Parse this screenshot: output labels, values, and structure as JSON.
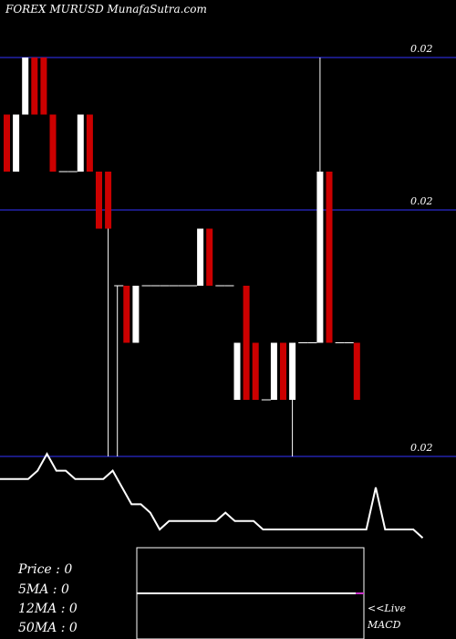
{
  "header": {
    "title": "FOREX  MURUSD MunafaSutra.com"
  },
  "colors": {
    "background": "#000000",
    "gridline": "#1a1a80",
    "down_candle": "#cc0000",
    "up_candle": "#ffffff",
    "text": "#ffffff",
    "macd_line": "#ffffff"
  },
  "chart_data": {
    "type": "candlestick",
    "title": "FOREX  MURUSD MunafaSutra.com",
    "price_axis": {
      "ticks": [
        "0.02",
        "0.02",
        "0.02"
      ]
    },
    "candles": [
      {
        "open": 4,
        "close": 5,
        "dir": "down"
      },
      {
        "open": 4,
        "close": 5,
        "dir": "up"
      },
      {
        "open": 5,
        "close": 6,
        "dir": "up"
      },
      {
        "open": 5,
        "close": 6,
        "dir": "down"
      },
      {
        "open": 5,
        "close": 6,
        "dir": "down"
      },
      {
        "open": 4,
        "close": 5,
        "dir": "down"
      },
      {
        "open": 4,
        "close": 4,
        "dir": "doji"
      },
      {
        "open": 4,
        "close": 4,
        "dir": "doji"
      },
      {
        "open": 4,
        "close": 5,
        "dir": "up"
      },
      {
        "open": 4,
        "close": 5,
        "dir": "down"
      },
      {
        "open": 3,
        "close": 4,
        "dir": "down"
      },
      {
        "open": 3,
        "close": 4,
        "dir": "down",
        "low": 2
      },
      {
        "open": 2,
        "close": 2,
        "dir": "doji"
      },
      {
        "open": 1,
        "close": 2,
        "dir": "down"
      },
      {
        "open": 1,
        "close": 2,
        "dir": "up"
      },
      {
        "open": 2,
        "close": 2,
        "dir": "doji"
      },
      {
        "open": 2,
        "close": 2,
        "dir": "doji"
      },
      {
        "open": 2,
        "close": 2,
        "dir": "doji"
      },
      {
        "open": 2,
        "close": 2,
        "dir": "doji"
      },
      {
        "open": 2,
        "close": 2,
        "dir": "doji"
      },
      {
        "open": 2,
        "close": 2,
        "dir": "doji"
      },
      {
        "open": 2,
        "close": 3,
        "dir": "up"
      },
      {
        "open": 2,
        "close": 3,
        "dir": "down"
      },
      {
        "open": 2,
        "close": 2,
        "dir": "doji"
      },
      {
        "open": 2,
        "close": 2,
        "dir": "doji"
      },
      {
        "open": 0,
        "close": 1,
        "dir": "up"
      },
      {
        "open": 0,
        "close": 2,
        "dir": "down"
      },
      {
        "open": 0,
        "close": 1,
        "dir": "down"
      },
      {
        "open": 0,
        "close": 0,
        "dir": "doji"
      },
      {
        "open": 0,
        "close": 1,
        "dir": "up"
      },
      {
        "open": 0,
        "close": 1,
        "dir": "down"
      },
      {
        "open": 0,
        "close": 1,
        "dir": "up"
      },
      {
        "open": 1,
        "close": 1,
        "dir": "doji"
      },
      {
        "open": 1,
        "close": 1,
        "dir": "doji"
      },
      {
        "open": 1,
        "close": 4,
        "dir": "up",
        "high": 6
      },
      {
        "open": 1,
        "close": 4,
        "dir": "down"
      },
      {
        "open": 1,
        "close": 1,
        "dir": "doji"
      },
      {
        "open": 1,
        "close": 1,
        "dir": "doji"
      },
      {
        "open": 0,
        "close": 1,
        "dir": "down"
      }
    ],
    "stats": {
      "price": "Price   : 0",
      "ma5": "5MA : 0",
      "ma12": "12MA : 0",
      "ma50": "50MA : 0"
    },
    "macd": {
      "label": "MACD",
      "live_label": "<<Live",
      "values": [
        6,
        6,
        6,
        6,
        7,
        9,
        7,
        7,
        6,
        6,
        6,
        6,
        7,
        5,
        3,
        3,
        2,
        0,
        1,
        1,
        1,
        1,
        1,
        1,
        2,
        1,
        1,
        1,
        0,
        0,
        0,
        0,
        0,
        0,
        0,
        0,
        0,
        0,
        0,
        0,
        5,
        0,
        0,
        0,
        0,
        -1
      ]
    }
  }
}
